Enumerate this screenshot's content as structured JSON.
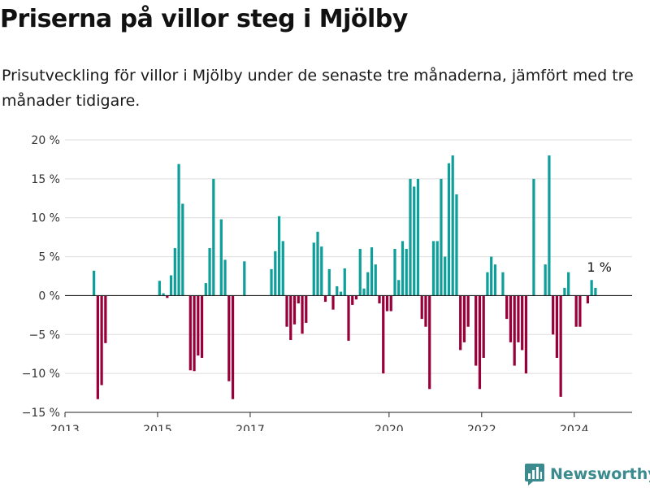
{
  "title": "Priserna på villor steg i Mjölby",
  "subtitle": "Prisutveckling för villor i Mjölby under de senaste tre månaderna, jämfört med tre månader tidigare.",
  "brand": {
    "name": "Newsworthy",
    "icon": "newsworthy-logo-icon",
    "color": "#3a8a8e"
  },
  "colors": {
    "positive": "#0e9f9a",
    "negative": "#99003a",
    "axis": "#222222",
    "grid": "#dddddd"
  },
  "chart_data": {
    "type": "bar",
    "title": "Priserna på villor steg i Mjölby",
    "subtitle": "Prisutveckling för villor i Mjölby under de senaste tre månaderna, jämfört med tre månader tidigare.",
    "xlabel": "",
    "ylabel": "",
    "ylim": [
      -15,
      20
    ],
    "grid": true,
    "y_ticks": [
      -15,
      -10,
      -5,
      0,
      5,
      10,
      15,
      20
    ],
    "y_tick_labels": [
      "−15 %",
      "−10 %",
      "−5 %",
      "0 %",
      "5 %",
      "10 %",
      "15 %",
      "20 %"
    ],
    "x_ticks": [
      2013,
      2015,
      2017,
      2020,
      2022,
      2024
    ],
    "x_tick_labels": [
      "2013",
      "2015",
      "2017",
      "2020",
      "2022",
      "2024"
    ],
    "x_range": [
      2013,
      2025.25
    ],
    "annotation": {
      "text": "1 %",
      "x": "2024-07",
      "value": 1
    },
    "bars": [
      {
        "x": "2013-08",
        "value": 3.2
      },
      {
        "x": "2013-09",
        "value": -13.3
      },
      {
        "x": "2013-10",
        "value": -11.5
      },
      {
        "x": "2013-11",
        "value": -6.1
      },
      {
        "x": "2015-01",
        "value": 1.9
      },
      {
        "x": "2015-02",
        "value": 0.3
      },
      {
        "x": "2015-03",
        "value": -0.3
      },
      {
        "x": "2015-04",
        "value": 2.6
      },
      {
        "x": "2015-05",
        "value": 6.1
      },
      {
        "x": "2015-06",
        "value": 16.9
      },
      {
        "x": "2015-07",
        "value": 11.8
      },
      {
        "x": "2015-09",
        "value": -9.6
      },
      {
        "x": "2015-10",
        "value": -9.7
      },
      {
        "x": "2015-11",
        "value": -7.7
      },
      {
        "x": "2015-12",
        "value": -8.0
      },
      {
        "x": "2016-01",
        "value": 1.6
      },
      {
        "x": "2016-02",
        "value": 6.1
      },
      {
        "x": "2016-03",
        "value": 15.0
      },
      {
        "x": "2016-05",
        "value": 9.8
      },
      {
        "x": "2016-06",
        "value": 4.6
      },
      {
        "x": "2016-07",
        "value": -11.0
      },
      {
        "x": "2016-08",
        "value": -13.3
      },
      {
        "x": "2016-11",
        "value": 4.4
      },
      {
        "x": "2017-06",
        "value": 3.4
      },
      {
        "x": "2017-07",
        "value": 5.7
      },
      {
        "x": "2017-08",
        "value": 10.2
      },
      {
        "x": "2017-09",
        "value": 7.0
      },
      {
        "x": "2017-10",
        "value": -4.0
      },
      {
        "x": "2017-11",
        "value": -5.7
      },
      {
        "x": "2017-12",
        "value": -3.7
      },
      {
        "x": "2018-01",
        "value": -1.0
      },
      {
        "x": "2018-02",
        "value": -4.9
      },
      {
        "x": "2018-03",
        "value": -3.5
      },
      {
        "x": "2018-05",
        "value": 6.8
      },
      {
        "x": "2018-06",
        "value": 8.2
      },
      {
        "x": "2018-07",
        "value": 6.3
      },
      {
        "x": "2018-08",
        "value": -0.8
      },
      {
        "x": "2018-09",
        "value": 3.4
      },
      {
        "x": "2018-10",
        "value": -1.8
      },
      {
        "x": "2018-11",
        "value": 1.2
      },
      {
        "x": "2018-12",
        "value": 0.5
      },
      {
        "x": "2019-01",
        "value": 3.5
      },
      {
        "x": "2019-02",
        "value": -5.8
      },
      {
        "x": "2019-03",
        "value": -1.2
      },
      {
        "x": "2019-04",
        "value": -0.5
      },
      {
        "x": "2019-05",
        "value": 6.0
      },
      {
        "x": "2019-06",
        "value": 0.9
      },
      {
        "x": "2019-07",
        "value": 3.0
      },
      {
        "x": "2019-08",
        "value": 6.2
      },
      {
        "x": "2019-09",
        "value": 4.0
      },
      {
        "x": "2019-10",
        "value": -1.0
      },
      {
        "x": "2019-11",
        "value": -10.0
      },
      {
        "x": "2019-12",
        "value": -2.0
      },
      {
        "x": "2020-01",
        "value": -2.0
      },
      {
        "x": "2020-02",
        "value": 6.0
      },
      {
        "x": "2020-03",
        "value": 2.0
      },
      {
        "x": "2020-04",
        "value": 7.0
      },
      {
        "x": "2020-05",
        "value": 6.0
      },
      {
        "x": "2020-06",
        "value": 15.0
      },
      {
        "x": "2020-07",
        "value": 14.0
      },
      {
        "x": "2020-08",
        "value": 15.0
      },
      {
        "x": "2020-09",
        "value": -3.0
      },
      {
        "x": "2020-10",
        "value": -4.0
      },
      {
        "x": "2020-11",
        "value": -12.0
      },
      {
        "x": "2020-12",
        "value": 7.0
      },
      {
        "x": "2021-01",
        "value": 7.0
      },
      {
        "x": "2021-02",
        "value": 15.0
      },
      {
        "x": "2021-03",
        "value": 5.0
      },
      {
        "x": "2021-04",
        "value": 17.0
      },
      {
        "x": "2021-05",
        "value": 18.0
      },
      {
        "x": "2021-06",
        "value": 13.0
      },
      {
        "x": "2021-07",
        "value": -7.0
      },
      {
        "x": "2021-08",
        "value": -6.0
      },
      {
        "x": "2021-09",
        "value": -4.0
      },
      {
        "x": "2021-11",
        "value": -9.0
      },
      {
        "x": "2021-12",
        "value": -12.0
      },
      {
        "x": "2022-01",
        "value": -8.0
      },
      {
        "x": "2022-02",
        "value": 3.0
      },
      {
        "x": "2022-03",
        "value": 5.0
      },
      {
        "x": "2022-04",
        "value": 4.0
      },
      {
        "x": "2022-06",
        "value": 3.0
      },
      {
        "x": "2022-07",
        "value": -3.0
      },
      {
        "x": "2022-08",
        "value": -6.0
      },
      {
        "x": "2022-09",
        "value": -9.0
      },
      {
        "x": "2022-10",
        "value": -6.0
      },
      {
        "x": "2022-11",
        "value": -7.0
      },
      {
        "x": "2022-12",
        "value": -10.0
      },
      {
        "x": "2023-02",
        "value": 15.0
      },
      {
        "x": "2023-05",
        "value": 4.0
      },
      {
        "x": "2023-06",
        "value": 18.0
      },
      {
        "x": "2023-07",
        "value": -5.0
      },
      {
        "x": "2023-08",
        "value": -8.0
      },
      {
        "x": "2023-09",
        "value": -13.0
      },
      {
        "x": "2023-10",
        "value": 1.0
      },
      {
        "x": "2023-11",
        "value": 3.0
      },
      {
        "x": "2024-01",
        "value": -4.0
      },
      {
        "x": "2024-02",
        "value": -4.0
      },
      {
        "x": "2024-04",
        "value": -1.0
      },
      {
        "x": "2024-05",
        "value": 2.0
      },
      {
        "x": "2024-06",
        "value": 1.0
      }
    ]
  }
}
